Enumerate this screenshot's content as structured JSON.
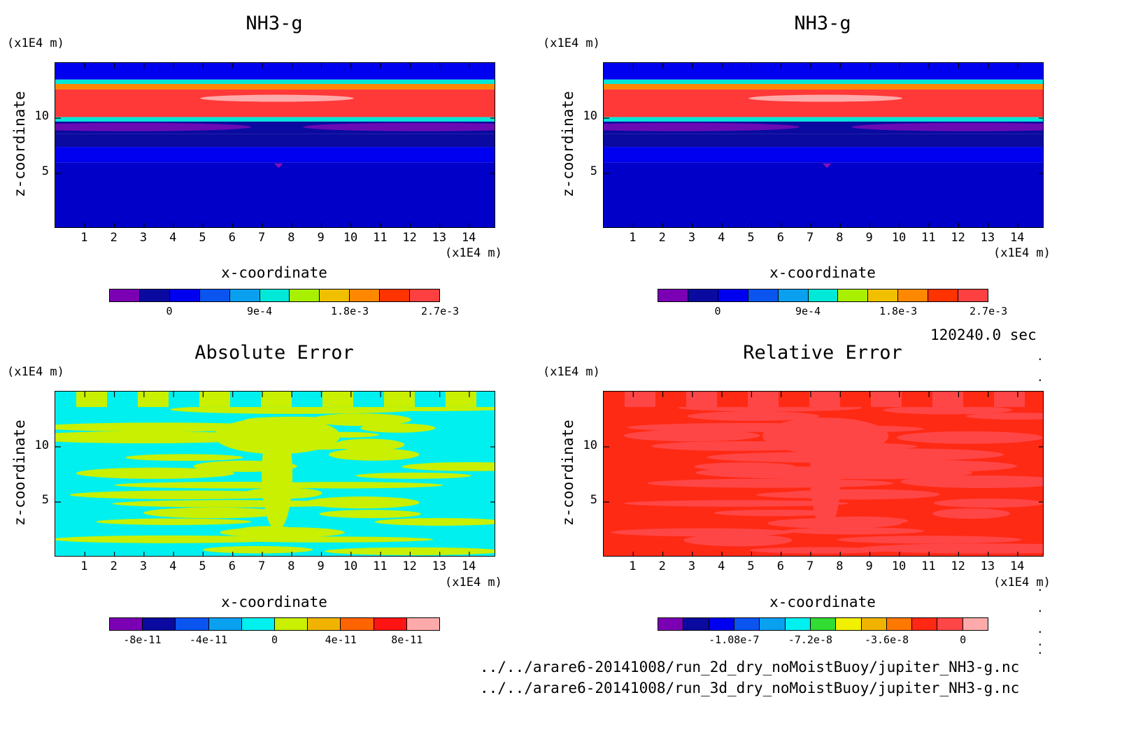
{
  "figure": {
    "time_label": "120240.0 sec",
    "file_paths": [
      "../../arare6-20141008/run_2d_dry_noMoistBuoy/jupiter_NH3-g.nc",
      "../../arare6-20141008/run_3d_dry_noMoistBuoy/jupiter_NH3-g.nc"
    ],
    "dots": [
      ".",
      ".",
      ".",
      ".",
      ".",
      ".",
      "."
    ]
  },
  "chart_data": [
    {
      "type": "heatmap",
      "title": "NH3-g",
      "xlabel": "x-coordinate",
      "ylabel": "z-coordinate",
      "xunit": "(x1E4 m)",
      "yunit": "(x1E4 m)",
      "xlim": [
        0,
        14.9
      ],
      "ylim": [
        0,
        15
      ],
      "xticks": [
        "1",
        "2",
        "3",
        "4",
        "5",
        "6",
        "7",
        "8",
        "9",
        "10",
        "11",
        "12",
        "13",
        "14"
      ],
      "yticks": [
        "5",
        "10"
      ],
      "colorbar": {
        "colors": [
          "#7b00b4",
          "#0a0aa0",
          "#0000f0",
          "#0a55f0",
          "#0aa0f0",
          "#00e8d8",
          "#a8f000",
          "#f0c000",
          "#ff8800",
          "#ff3300",
          "#ff4040"
        ],
        "tick_labels": [
          "0",
          "9e-4",
          "1.8e-3",
          "2.7e-3"
        ],
        "tick_values": [
          0,
          0.0009,
          0.0018,
          0.0027
        ],
        "range": [
          -0.0006,
          0.0027
        ]
      },
      "bands": [
        {
          "z0": 0,
          "z1": 6,
          "color": "#0000c8"
        },
        {
          "z0": 6,
          "z1": 7.4,
          "color": "#0000f0"
        },
        {
          "z0": 7.4,
          "z1": 8.6,
          "color": "#0a0aa0"
        },
        {
          "z0": 8.6,
          "z1": 9.7,
          "color": "#0a0aa0"
        },
        {
          "z0": 9.7,
          "z1": 10.1,
          "color": "#00e8d8"
        },
        {
          "z0": 10.1,
          "z1": 12.6,
          "color": "#ff3838"
        },
        {
          "z0": 12.6,
          "z1": 13.1,
          "color": "#ff8800"
        },
        {
          "z0": 13.1,
          "z1": 13.5,
          "color": "#00e8d8"
        },
        {
          "z0": 13.5,
          "z1": 15,
          "color": "#0000f0"
        }
      ]
    },
    {
      "type": "heatmap",
      "title": "NH3-g",
      "xlabel": "x-coordinate",
      "ylabel": "z-coordinate",
      "xunit": "(x1E4 m)",
      "yunit": "(x1E4 m)",
      "xlim": [
        0,
        14.9
      ],
      "ylim": [
        0,
        15
      ],
      "xticks": [
        "1",
        "2",
        "3",
        "4",
        "5",
        "6",
        "7",
        "8",
        "9",
        "10",
        "11",
        "12",
        "13",
        "14"
      ],
      "yticks": [
        "5",
        "10"
      ],
      "colorbar": {
        "colors": [
          "#7b00b4",
          "#0a0aa0",
          "#0000f0",
          "#0a55f0",
          "#0aa0f0",
          "#00e8d8",
          "#a8f000",
          "#f0c000",
          "#ff8800",
          "#ff3300",
          "#ff4040"
        ],
        "tick_labels": [
          "0",
          "9e-4",
          "1.8e-3",
          "2.7e-3"
        ],
        "tick_values": [
          0,
          0.0009,
          0.0018,
          0.0027
        ],
        "range": [
          -0.0006,
          0.0027
        ]
      },
      "bands": [
        {
          "z0": 0,
          "z1": 6,
          "color": "#0000c8"
        },
        {
          "z0": 6,
          "z1": 7.4,
          "color": "#0000f0"
        },
        {
          "z0": 7.4,
          "z1": 8.6,
          "color": "#0a0aa0"
        },
        {
          "z0": 8.6,
          "z1": 9.7,
          "color": "#0a0aa0"
        },
        {
          "z0": 9.7,
          "z1": 10.1,
          "color": "#00e8d8"
        },
        {
          "z0": 10.1,
          "z1": 12.6,
          "color": "#ff3838"
        },
        {
          "z0": 12.6,
          "z1": 13.1,
          "color": "#ff8800"
        },
        {
          "z0": 13.1,
          "z1": 13.5,
          "color": "#00e8d8"
        },
        {
          "z0": 13.5,
          "z1": 15,
          "color": "#0000f0"
        }
      ]
    },
    {
      "type": "heatmap",
      "title": "Absolute Error",
      "xlabel": "x-coordinate",
      "ylabel": "z-coordinate",
      "xunit": "(x1E4 m)",
      "yunit": "(x1E4 m)",
      "xlim": [
        0,
        14.9
      ],
      "ylim": [
        0,
        15
      ],
      "xticks": [
        "1",
        "2",
        "3",
        "4",
        "5",
        "6",
        "7",
        "8",
        "9",
        "10",
        "11",
        "12",
        "13",
        "14"
      ],
      "yticks": [
        "5",
        "10"
      ],
      "colorbar": {
        "colors": [
          "#7b00b4",
          "#0a0aa0",
          "#0a55f0",
          "#0aa0f0",
          "#00f0f0",
          "#c8f000",
          "#f0b400",
          "#ff6400",
          "#ff1414",
          "#ffaaaa"
        ],
        "tick_labels": [
          "-8e-11",
          "-4e-11",
          "0",
          "4e-11",
          "8e-11"
        ],
        "tick_values": [
          -8e-11,
          -4e-11,
          0,
          4e-11,
          8e-11
        ],
        "range": [
          -1e-10,
          1e-10
        ]
      },
      "base_color": "#00f0f0",
      "pattern_color": "#c8f000"
    },
    {
      "type": "heatmap",
      "title": "Relative Error",
      "xlabel": "x-coordinate",
      "ylabel": "z-coordinate",
      "xunit": "(x1E4 m)",
      "yunit": "(x1E4 m)",
      "xlim": [
        0,
        14.9
      ],
      "ylim": [
        0,
        15
      ],
      "xticks": [
        "1",
        "2",
        "3",
        "4",
        "5",
        "6",
        "7",
        "8",
        "9",
        "10",
        "11",
        "12",
        "13",
        "14"
      ],
      "yticks": [
        "5",
        "10"
      ],
      "colorbar": {
        "colors": [
          "#7b00b4",
          "#0a0aa0",
          "#0000f0",
          "#0a55f0",
          "#0aa0f0",
          "#00f0f0",
          "#32dc32",
          "#f0f000",
          "#f0b400",
          "#ff7800",
          "#ff2814",
          "#ff4646",
          "#ffaaaa"
        ],
        "tick_labels": [
          "-1.08e-7",
          "-7.2e-8",
          "-3.6e-8",
          "0"
        ],
        "tick_values": [
          -1.08e-07,
          -7.2e-08,
          -3.6e-08,
          0
        ],
        "range": [
          -1.44e-07,
          1.2e-08
        ]
      },
      "base_color": "#ff2a14",
      "pattern_color": "#ff4646"
    }
  ]
}
